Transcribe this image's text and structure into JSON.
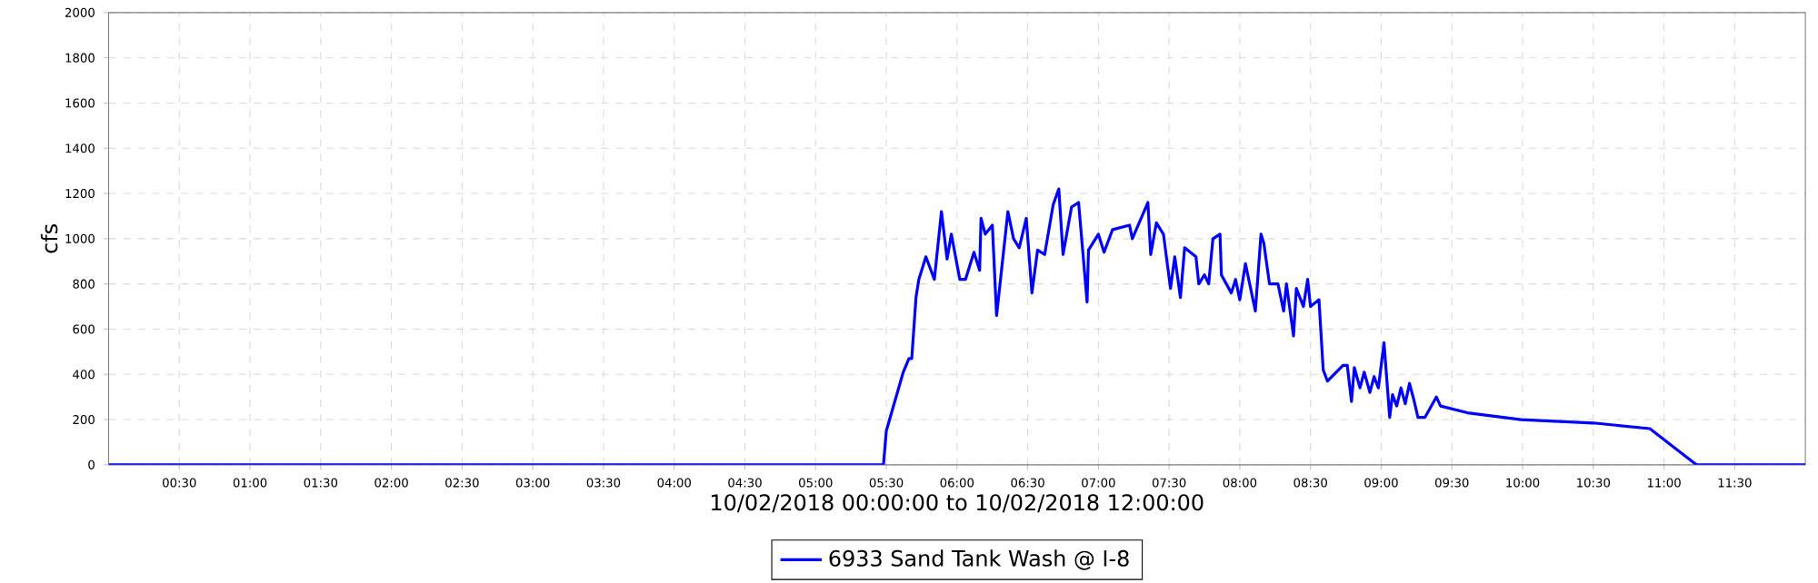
{
  "chart_data": {
    "type": "line",
    "xlabel": "10/02/2018 00:00:00 to 10/02/2018 12:00:00",
    "ylabel": "cfs",
    "xlim": [
      0,
      12
    ],
    "ylim": [
      0,
      2000
    ],
    "xticks": [
      {
        "value": 0.5,
        "label": "00:30"
      },
      {
        "value": 1,
        "label": "01:00"
      },
      {
        "value": 1.5,
        "label": "01:30"
      },
      {
        "value": 2,
        "label": "02:00"
      },
      {
        "value": 2.5,
        "label": "02:30"
      },
      {
        "value": 3,
        "label": "03:00"
      },
      {
        "value": 3.5,
        "label": "03:30"
      },
      {
        "value": 4,
        "label": "04:00"
      },
      {
        "value": 4.5,
        "label": "04:30"
      },
      {
        "value": 5,
        "label": "05:00"
      },
      {
        "value": 5.5,
        "label": "05:30"
      },
      {
        "value": 6,
        "label": "06:00"
      },
      {
        "value": 6.5,
        "label": "06:30"
      },
      {
        "value": 7,
        "label": "07:00"
      },
      {
        "value": 7.5,
        "label": "07:30"
      },
      {
        "value": 8,
        "label": "08:00"
      },
      {
        "value": 8.5,
        "label": "08:30"
      },
      {
        "value": 9,
        "label": "09:00"
      },
      {
        "value": 9.5,
        "label": "09:30"
      },
      {
        "value": 10,
        "label": "10:00"
      },
      {
        "value": 10.5,
        "label": "10:30"
      },
      {
        "value": 11,
        "label": "11:00"
      },
      {
        "value": 11.5,
        "label": "11:30"
      }
    ],
    "yticks": [
      0,
      200,
      400,
      600,
      800,
      1000,
      1200,
      1400,
      1600,
      1800,
      2000
    ],
    "grid": true,
    "legend": "bottom",
    "marker": "none",
    "line_style": "solid",
    "series": [
      {
        "name": "6933 Sand Tank Wash @ I-8",
        "color": "#0000ff",
        "x": [
          0,
          5.48,
          5.5,
          5.62,
          5.66,
          5.68,
          5.71,
          5.73,
          5.78,
          5.84,
          5.89,
          5.93,
          5.96,
          6.02,
          6.06,
          6.12,
          6.16,
          6.17,
          6.2,
          6.25,
          6.28,
          6.36,
          6.4,
          6.44,
          6.49,
          6.53,
          6.57,
          6.62,
          6.68,
          6.72,
          6.75,
          6.81,
          6.86,
          6.92,
          6.93,
          7.0,
          7.04,
          7.1,
          7.22,
          7.24,
          7.35,
          7.37,
          7.41,
          7.46,
          7.51,
          7.54,
          7.58,
          7.61,
          7.69,
          7.71,
          7.75,
          7.78,
          7.81,
          7.86,
          7.87,
          7.94,
          7.97,
          8.0,
          8.04,
          8.07,
          8.11,
          8.15,
          8.17,
          8.21,
          8.27,
          8.31,
          8.33,
          8.38,
          8.4,
          8.45,
          8.48,
          8.5,
          8.56,
          8.59,
          8.62,
          8.73,
          8.76,
          8.79,
          8.81,
          8.85,
          8.88,
          8.92,
          8.95,
          8.98,
          9.02,
          9.06,
          9.08,
          9.11,
          9.14,
          9.17,
          9.2,
          9.23,
          9.26,
          9.31,
          9.39,
          9.42,
          9.61,
          9.99,
          10.5,
          10.9,
          11.23,
          12.0
        ],
        "values": [
          0,
          0,
          150,
          410,
          470,
          470,
          740,
          820,
          920,
          820,
          1120,
          910,
          1020,
          820,
          820,
          940,
          860,
          1090,
          1020,
          1060,
          660,
          1120,
          1000,
          960,
          1090,
          760,
          950,
          930,
          1150,
          1220,
          930,
          1140,
          1160,
          720,
          950,
          1020,
          940,
          1040,
          1060,
          1000,
          1160,
          930,
          1070,
          1020,
          780,
          920,
          740,
          960,
          920,
          800,
          840,
          800,
          1000,
          1020,
          840,
          760,
          820,
          730,
          890,
          800,
          680,
          1020,
          980,
          800,
          800,
          680,
          800,
          570,
          780,
          700,
          820,
          700,
          730,
          420,
          370,
          440,
          440,
          280,
          430,
          340,
          410,
          320,
          390,
          340,
          540,
          210,
          310,
          260,
          340,
          270,
          360,
          290,
          210,
          210,
          300,
          260,
          230,
          200,
          185,
          160,
          0,
          0
        ]
      }
    ]
  }
}
